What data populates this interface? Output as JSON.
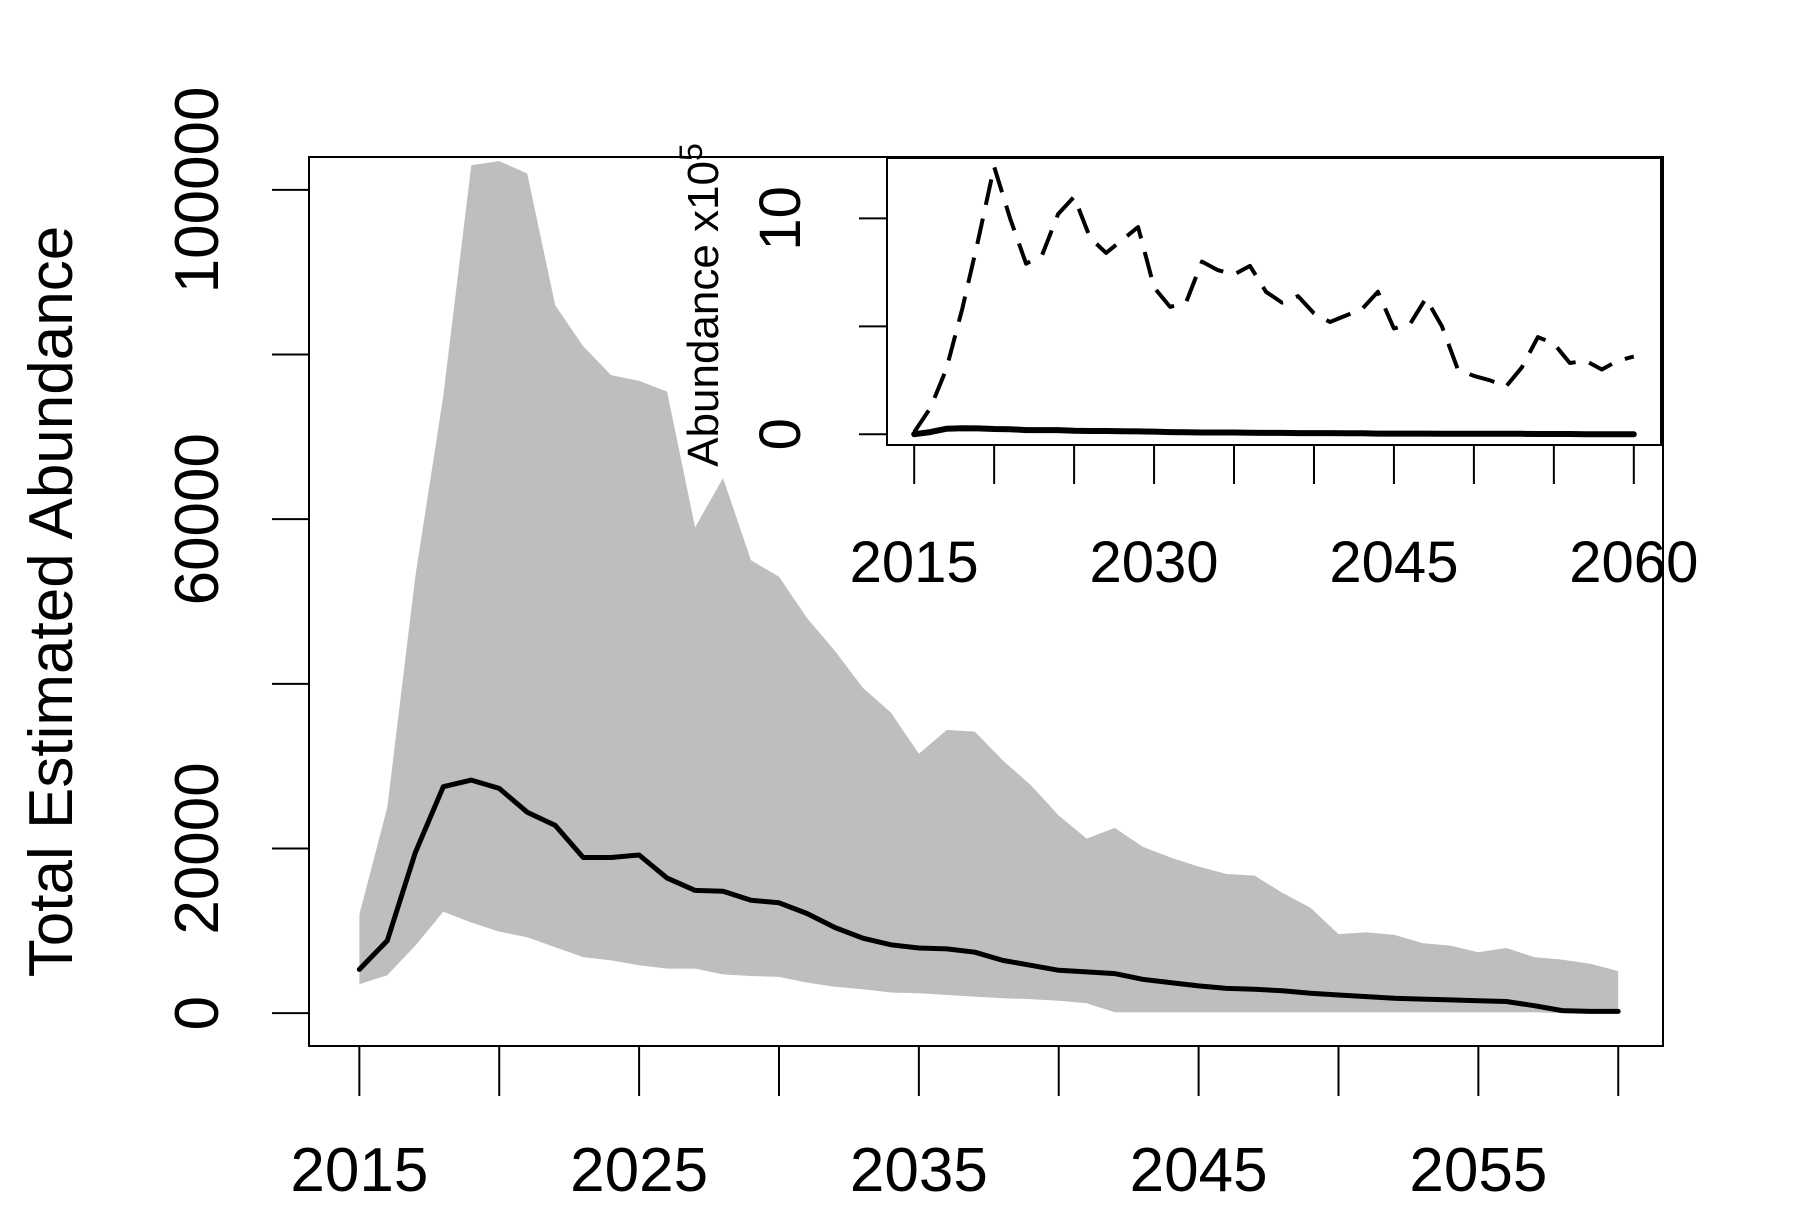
{
  "chart_data": [
    {
      "type": "area",
      "title": "",
      "xlabel": "",
      "ylabel": "Total Estimated Abundance",
      "xlim": [
        2013.2,
        2061.6
      ],
      "ylim": [
        -4000,
        104000
      ],
      "x_ticks": [
        2015,
        2020,
        2025,
        2030,
        2035,
        2040,
        2045,
        2050,
        2055,
        2060
      ],
      "x_tick_labels": [
        "2015",
        "2025",
        "2035",
        "2045",
        "2055"
      ],
      "x_tick_label_values": [
        2015,
        2025,
        2035,
        2045,
        2055
      ],
      "y_ticks": [
        0,
        20000,
        40000,
        60000,
        80000,
        100000
      ],
      "y_tick_labels": [
        "0",
        "20000",
        "60000",
        "100000"
      ],
      "y_tick_label_values": [
        0,
        20000,
        60000,
        100000
      ],
      "x": [
        2015,
        2016,
        2017,
        2018,
        2019,
        2020,
        2021,
        2022,
        2023,
        2024,
        2025,
        2026,
        2027,
        2028,
        2029,
        2030,
        2031,
        2032,
        2033,
        2034,
        2035,
        2036,
        2037,
        2038,
        2039,
        2040,
        2041,
        2042,
        2043,
        2044,
        2045,
        2046,
        2047,
        2048,
        2049,
        2050,
        2051,
        2052,
        2053,
        2054,
        2055,
        2056,
        2057,
        2058,
        2059,
        2060
      ],
      "series": [
        {
          "name": "Upper interval",
          "role": "band_upper",
          "color": "#bebebe",
          "values": [
            12000,
            25000,
            53000,
            75000,
            103000,
            103500,
            102000,
            86000,
            81000,
            77500,
            76800,
            75500,
            59000,
            65000,
            55000,
            53000,
            48000,
            44000,
            39500,
            36500,
            31500,
            34400,
            34200,
            30700,
            27700,
            24000,
            21200,
            22500,
            20200,
            18900,
            17800,
            16900,
            16700,
            14600,
            12800,
            9600,
            9800,
            9500,
            8500,
            8200,
            7400,
            7900,
            6800,
            6500,
            6000,
            5100
          ]
        },
        {
          "name": "Lower interval",
          "role": "band_lower",
          "color": "#bebebe",
          "values": [
            3500,
            4600,
            8200,
            12300,
            11000,
            9900,
            9200,
            8000,
            6800,
            6400,
            5800,
            5400,
            5400,
            4700,
            4500,
            4400,
            3700,
            3200,
            2900,
            2500,
            2400,
            2200,
            2000,
            1800,
            1700,
            1500,
            1200,
            100,
            100,
            100,
            100,
            100,
            100,
            100,
            100,
            100,
            100,
            100,
            100,
            100,
            100,
            100,
            100,
            0,
            0,
            0
          ]
        },
        {
          "name": "Mean",
          "role": "line",
          "color": "#000000",
          "values": [
            5300,
            8800,
            19500,
            27500,
            28300,
            27300,
            24400,
            22800,
            18900,
            18900,
            19200,
            16400,
            14900,
            14800,
            13700,
            13400,
            12100,
            10400,
            9100,
            8300,
            7900,
            7800,
            7400,
            6400,
            5800,
            5200,
            5000,
            4800,
            4100,
            3700,
            3300,
            3000,
            2900,
            2700,
            2400,
            2200,
            2000,
            1800,
            1700,
            1600,
            1500,
            1400,
            900,
            300,
            200,
            200
          ]
        }
      ]
    },
    {
      "type": "line",
      "title": "",
      "xlabel": "",
      "ylabel": "Abundance x10",
      "ylabel_superscript": "5",
      "xlim": [
        2013.3,
        2061.7
      ],
      "ylim": [
        -0.5,
        12.8
      ],
      "x_ticks": [
        2015,
        2020,
        2025,
        2030,
        2035,
        2040,
        2045,
        2050,
        2055,
        2060
      ],
      "x_tick_labels": [
        "2015",
        "2030",
        "2045",
        "2060"
      ],
      "x_tick_label_values": [
        2015,
        2030,
        2045,
        2060
      ],
      "y_ticks": [
        0,
        5,
        10
      ],
      "y_tick_labels": [
        "0",
        "10"
      ],
      "y_tick_label_values": [
        0,
        10
      ],
      "x": [
        2015,
        2016,
        2017,
        2018,
        2019,
        2020,
        2021,
        2022,
        2023,
        2024,
        2025,
        2026,
        2027,
        2028,
        2029,
        2030,
        2031,
        2032,
        2033,
        2034,
        2035,
        2036,
        2037,
        2038,
        2039,
        2040,
        2041,
        2042,
        2043,
        2044,
        2045,
        2046,
        2047,
        2048,
        2049,
        2050,
        2051,
        2052,
        2053,
        2054,
        2055,
        2056,
        2057,
        2058,
        2059,
        2060
      ],
      "series": [
        {
          "name": "Upper (dashed)",
          "style": "dashed",
          "color": "#000000",
          "values": [
            0.1,
            1.2,
            3.0,
            5.8,
            9.0,
            12.4,
            10.0,
            7.9,
            8.3,
            10.2,
            11.0,
            9.1,
            8.4,
            9.0,
            9.6,
            6.8,
            5.9,
            6.1,
            8.0,
            7.6,
            7.4,
            7.8,
            6.6,
            6.1,
            6.4,
            5.6,
            5.2,
            5.5,
            5.8,
            6.6,
            4.9,
            5.1,
            6.3,
            5.0,
            3.0,
            2.7,
            2.5,
            2.2,
            3.1,
            4.5,
            4.2,
            3.3,
            3.4,
            3.0,
            3.4,
            3.6
          ]
        },
        {
          "name": "Mean (solid)",
          "style": "solid",
          "color": "#000000",
          "values": [
            0.0,
            0.1,
            0.25,
            0.28,
            0.27,
            0.24,
            0.23,
            0.19,
            0.19,
            0.19,
            0.16,
            0.15,
            0.15,
            0.14,
            0.13,
            0.12,
            0.1,
            0.09,
            0.08,
            0.08,
            0.08,
            0.07,
            0.06,
            0.06,
            0.05,
            0.05,
            0.05,
            0.04,
            0.04,
            0.03,
            0.03,
            0.03,
            0.03,
            0.02,
            0.02,
            0.02,
            0.02,
            0.02,
            0.02,
            0.01,
            0.01,
            0.01,
            0.0,
            0.0,
            0.0,
            0.0
          ]
        }
      ]
    }
  ]
}
